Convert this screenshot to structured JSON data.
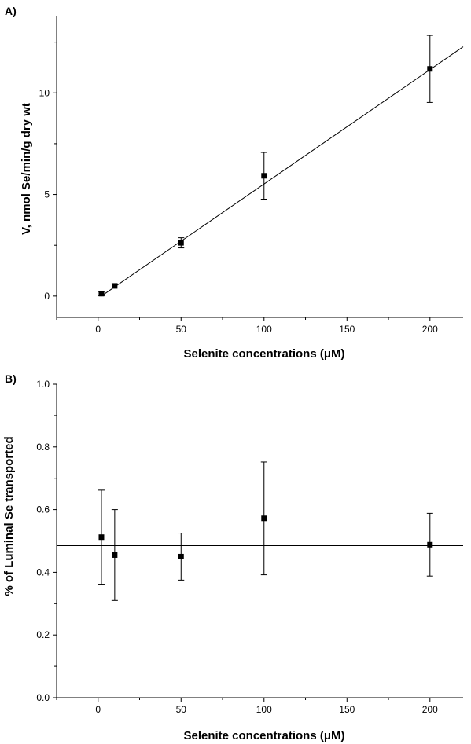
{
  "chart_data": [
    {
      "type": "scatter",
      "panel_label": "A)",
      "xlabel": "Selenite concentrations (μM)",
      "ylabel": "V, nmol Se/min/g dry wt",
      "xlim": [
        -25,
        220
      ],
      "ylim": [
        -1.05,
        13.8
      ],
      "xticks": [
        0,
        50,
        100,
        150,
        200
      ],
      "xtick_labels": [
        "0",
        "50",
        "100",
        "150",
        "200"
      ],
      "yticks": [
        0,
        5,
        10
      ],
      "ytick_labels": [
        "0",
        "5",
        "10"
      ],
      "grid": false,
      "series": [
        {
          "x": [
            2,
            10,
            50,
            100,
            200
          ],
          "y": [
            0.12,
            0.5,
            2.62,
            5.92,
            11.18
          ],
          "error": [
            0.1,
            0.1,
            0.25,
            1.15,
            1.65
          ],
          "marker": "square"
        }
      ],
      "fit_line": {
        "type": "linear",
        "x": [
          2,
          220
        ],
        "y": [
          0.0,
          12.27
        ]
      }
    },
    {
      "type": "scatter",
      "panel_label": "B)",
      "xlabel": "Selenite concentrations (μM)",
      "ylabel": "% of Luminal Se transported",
      "xlim": [
        -25,
        220
      ],
      "ylim": [
        0.0,
        1.0
      ],
      "xticks": [
        0,
        50,
        100,
        150,
        200
      ],
      "xtick_labels": [
        "0",
        "50",
        "100",
        "150",
        "200"
      ],
      "yticks": [
        0.0,
        0.2,
        0.4,
        0.6,
        0.8,
        1.0
      ],
      "ytick_labels": [
        "0.0",
        "0.2",
        "0.4",
        "0.6",
        "0.8",
        "1.0"
      ],
      "grid": false,
      "series": [
        {
          "x": [
            2,
            10,
            50,
            100,
            200
          ],
          "y": [
            0.512,
            0.455,
            0.45,
            0.572,
            0.488
          ],
          "error": [
            0.15,
            0.145,
            0.075,
            0.18,
            0.1
          ],
          "marker": "square"
        }
      ],
      "fit_line": {
        "type": "constant",
        "x": [
          -25,
          220
        ],
        "y": [
          0.485,
          0.485
        ]
      }
    }
  ]
}
